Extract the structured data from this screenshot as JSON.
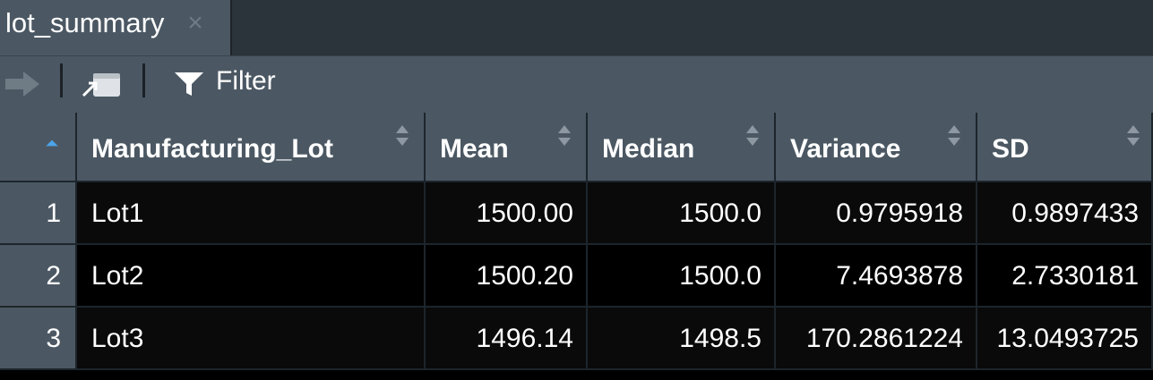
{
  "tab": {
    "title": "lot_summary",
    "close_glyph": "×"
  },
  "toolbar": {
    "forward_icon": "arrow-right-icon",
    "popout_icon": "popout-window-icon",
    "filter_icon": "funnel-icon",
    "filter_label": "Filter"
  },
  "table": {
    "columns": [
      "Manufacturing_Lot",
      "Mean",
      "Median",
      "Variance",
      "SD"
    ],
    "rows": [
      {
        "index": "1",
        "Manufacturing_Lot": "Lot1",
        "Mean": "1500.00",
        "Median": "1500.0",
        "Variance": "0.9795918",
        "SD": "0.9897433"
      },
      {
        "index": "2",
        "Manufacturing_Lot": "Lot2",
        "Mean": "1500.20",
        "Median": "1500.0",
        "Variance": "7.4693878",
        "SD": "2.7330181"
      },
      {
        "index": "3",
        "Manufacturing_Lot": "Lot3",
        "Mean": "1496.14",
        "Median": "1498.5",
        "Variance": "170.2861224",
        "SD": "13.0493725"
      }
    ]
  },
  "colors": {
    "accent_sort": "#4da3e8",
    "header_bg": "#4b5863",
    "body_bg": "#000000"
  }
}
